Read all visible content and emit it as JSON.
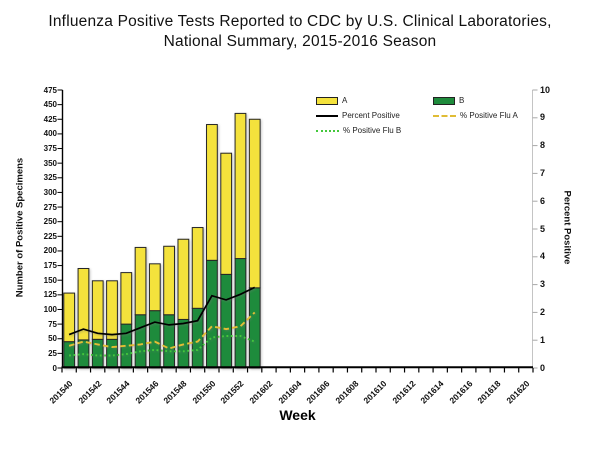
{
  "title": {
    "line1": "Influenza Positive Tests Reported to CDC by U.S. Clinical Laboratories,",
    "line2": "National Summary, 2015-2016 Season"
  },
  "axes": {
    "y_left": {
      "title": "Number of Positive Specimens",
      "ticks": [
        "0",
        "25",
        "50",
        "75",
        "100",
        "125",
        "150",
        "175",
        "200",
        "225",
        "250",
        "275",
        "300",
        "325",
        "350",
        "375",
        "400",
        "425",
        "450",
        "475"
      ]
    },
    "y_right": {
      "title": "Percent Positive",
      "ticks": [
        "0",
        "1",
        "2",
        "3",
        "4",
        "5",
        "6",
        "7",
        "8",
        "9",
        "10"
      ]
    },
    "x": {
      "title": "Week",
      "tick_labels": [
        "201540",
        "201542",
        "201544",
        "201546",
        "201548",
        "201550",
        "201552",
        "201602",
        "201604",
        "201606",
        "201608",
        "201610",
        "201612",
        "201614",
        "201616",
        "201618",
        "201620"
      ]
    }
  },
  "legend": {
    "items": [
      {
        "label": "A",
        "swatch": "bar",
        "color": "#F4E23C"
      },
      {
        "label": "B",
        "swatch": "bar",
        "color": "#1E8B3C"
      },
      {
        "label": "Percent Positive",
        "swatch": "line-solid",
        "color": "#000000"
      },
      {
        "label": "% Positive Flu A",
        "swatch": "line-dashed",
        "color": "#E0BC35"
      },
      {
        "label": "% Positive Flu B",
        "swatch": "line-dotted",
        "color": "#44C83C"
      }
    ]
  },
  "colors": {
    "flu_a_bar": "#F4E23C",
    "flu_b_bar": "#1E8B3C",
    "bar_outline": "#262626",
    "percent_positive_line": "#000000",
    "pct_flu_a_line": "#E3BE35",
    "pct_flu_b_line": "#44C83C",
    "right_axis": "#c4c4c4"
  },
  "chart_data": {
    "type": "combo: stacked bar + line",
    "title": "Influenza Positive Tests Reported to CDC by U.S. Clinical Laboratories, National Summary, 2015-2016 Season",
    "xlabel": "Week",
    "x_tick_labels": [
      "201540",
      "201542",
      "201544",
      "201546",
      "201548",
      "201550",
      "201552",
      "201602",
      "201604",
      "201606",
      "201608",
      "201610",
      "201612",
      "201614",
      "201616",
      "201618",
      "201620"
    ],
    "n_category_slots": 33,
    "y_left": {
      "label": "Number of Positive Specimens",
      "min": 0,
      "max": 475,
      "step": 25
    },
    "y_right": {
      "label": "Percent Positive",
      "min": 0,
      "max": 10,
      "step": 1
    },
    "grid": false,
    "legend_position": "top-right-inside",
    "bar_weeks": [
      "201540",
      "201541",
      "201542",
      "201543",
      "201544",
      "201545",
      "201546",
      "201547",
      "201548",
      "201549",
      "201550",
      "201551",
      "201552",
      "201601"
    ],
    "series": [
      {
        "name": "A",
        "type": "bar",
        "stack": "specimens",
        "axis": "left",
        "color": "#F4E23C",
        "values": [
          83,
          122,
          100,
          100,
          88,
          115,
          80,
          117,
          137,
          138,
          232,
          207,
          248,
          288
        ]
      },
      {
        "name": "B",
        "type": "bar",
        "stack": "specimens",
        "axis": "left",
        "color": "#1E8B3C",
        "values": [
          45,
          48,
          49,
          49,
          75,
          91,
          98,
          91,
          83,
          102,
          184,
          160,
          187,
          137
        ]
      },
      {
        "name": "Percent Positive",
        "type": "line",
        "axis": "right",
        "style": "solid",
        "color": "#000000",
        "values": [
          1.2,
          1.4,
          1.25,
          1.2,
          1.25,
          1.45,
          1.65,
          1.55,
          1.6,
          1.7,
          2.6,
          2.45,
          2.65,
          2.9
        ]
      },
      {
        "name": "% Positive Flu A",
        "type": "line",
        "axis": "right",
        "style": "dashed",
        "color": "#E3BE35",
        "values": [
          0.8,
          0.95,
          0.85,
          0.75,
          0.8,
          0.85,
          0.95,
          0.7,
          0.85,
          0.95,
          1.5,
          1.4,
          1.5,
          2.0
        ]
      },
      {
        "name": "% Positive Flu B",
        "type": "line",
        "axis": "right",
        "style": "dotted",
        "color": "#44C83C",
        "values": [
          0.45,
          0.5,
          0.45,
          0.45,
          0.5,
          0.6,
          0.65,
          0.6,
          0.6,
          0.65,
          1.1,
          1.15,
          1.15,
          0.95
        ]
      }
    ]
  }
}
